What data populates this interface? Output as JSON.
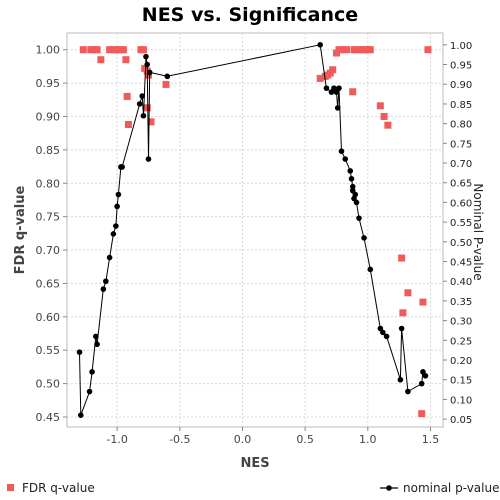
{
  "chart_data": {
    "type": "scatter",
    "title": "NES vs. Significance",
    "xlabel": "NES",
    "ylabel": "FDR q-value",
    "y2label": "Nominal P-value",
    "xlim": [
      -1.4,
      1.6
    ],
    "ylim": [
      0.435,
      1.025
    ],
    "y2lim": [
      0.03,
      1.03
    ],
    "x_ticks": [
      "-1.0",
      "-0.5",
      "0.0",
      "0.5",
      "1.0",
      "1.5"
    ],
    "x_tick_values": [
      -1.0,
      -0.5,
      0.0,
      0.5,
      1.0,
      1.5
    ],
    "y_ticks": [
      "0.45",
      "0.50",
      "0.55",
      "0.60",
      "0.65",
      "0.70",
      "0.75",
      "0.80",
      "0.85",
      "0.90",
      "0.95",
      "1.00"
    ],
    "y_tick_values": [
      0.45,
      0.5,
      0.55,
      0.6,
      0.65,
      0.7,
      0.75,
      0.8,
      0.85,
      0.9,
      0.95,
      1.0
    ],
    "y2_ticks": [
      "0.05",
      "0.10",
      "0.15",
      "0.20",
      "0.25",
      "0.30",
      "0.35",
      "0.40",
      "0.45",
      "0.50",
      "0.55",
      "0.60",
      "0.65",
      "0.70",
      "0.75",
      "0.80",
      "0.85",
      "0.90",
      "0.95",
      "1.00"
    ],
    "y2_tick_values": [
      0.05,
      0.1,
      0.15,
      0.2,
      0.25,
      0.3,
      0.35,
      0.4,
      0.45,
      0.5,
      0.55,
      0.6,
      0.65,
      0.7,
      0.75,
      0.8,
      0.85,
      0.9,
      0.95,
      1.0
    ],
    "grid": true,
    "legend_position": "bottom",
    "series": [
      {
        "name": "FDR q-value",
        "axis": "left",
        "style": "square-markers",
        "color": "#f05a5a",
        "points": [
          [
            -1.27,
            1.0
          ],
          [
            -1.21,
            1.0
          ],
          [
            -1.18,
            1.0
          ],
          [
            -1.16,
            1.0
          ],
          [
            -1.13,
            0.985
          ],
          [
            -1.06,
            1.0
          ],
          [
            -1.03,
            1.0
          ],
          [
            -1.0,
            1.0
          ],
          [
            -0.97,
            1.0
          ],
          [
            -0.95,
            1.0
          ],
          [
            -0.93,
            0.985
          ],
          [
            -0.92,
            0.93
          ],
          [
            -0.91,
            0.888
          ],
          [
            -0.81,
            1.0
          ],
          [
            -0.79,
            1.0
          ],
          [
            -0.78,
            0.972
          ],
          [
            -0.76,
            0.968
          ],
          [
            -0.75,
            0.962
          ],
          [
            -0.76,
            0.913
          ],
          [
            -0.73,
            0.892
          ],
          [
            -0.61,
            0.948
          ],
          [
            0.62,
            0.957
          ],
          [
            0.66,
            0.96
          ],
          [
            0.68,
            0.962
          ],
          [
            0.7,
            0.965
          ],
          [
            0.72,
            0.97
          ],
          [
            0.75,
            0.995
          ],
          [
            0.77,
            1.0
          ],
          [
            0.8,
            1.0
          ],
          [
            0.83,
            1.0
          ],
          [
            0.88,
            0.937
          ],
          [
            0.89,
            1.0
          ],
          [
            0.92,
            1.0
          ],
          [
            0.95,
            1.0
          ],
          [
            0.97,
            1.0
          ],
          [
            1.0,
            1.0
          ],
          [
            1.02,
            1.0
          ],
          [
            1.1,
            0.916
          ],
          [
            1.13,
            0.9
          ],
          [
            1.16,
            0.887
          ],
          [
            1.27,
            0.688
          ],
          [
            1.28,
            0.606
          ],
          [
            1.32,
            0.636
          ],
          [
            1.44,
            0.622
          ],
          [
            1.43,
            0.455
          ],
          [
            1.48,
            1.0
          ]
        ]
      },
      {
        "name": "nominal p-value",
        "axis": "right",
        "style": "line-with-dots",
        "color": "#000000",
        "points": [
          [
            -1.3,
            0.22
          ],
          [
            -1.29,
            0.06
          ],
          [
            -1.22,
            0.12
          ],
          [
            -1.2,
            0.17
          ],
          [
            -1.17,
            0.26
          ],
          [
            -1.16,
            0.24
          ],
          [
            -1.11,
            0.38
          ],
          [
            -1.09,
            0.4
          ],
          [
            -1.06,
            0.46
          ],
          [
            -1.03,
            0.52
          ],
          [
            -1.01,
            0.54
          ],
          [
            -1.0,
            0.59
          ],
          [
            -0.99,
            0.62
          ],
          [
            -0.97,
            0.69
          ],
          [
            -0.96,
            0.69
          ],
          [
            -0.82,
            0.85
          ],
          [
            -0.8,
            0.87
          ],
          [
            -0.79,
            0.82
          ],
          [
            -0.77,
            0.97
          ],
          [
            -0.76,
            0.95
          ],
          [
            -0.75,
            0.71
          ],
          [
            -0.74,
            0.93
          ],
          [
            -0.6,
            0.92
          ],
          [
            0.62,
            1.0
          ],
          [
            0.67,
            0.89
          ],
          [
            0.71,
            0.88
          ],
          [
            0.73,
            0.89
          ],
          [
            0.75,
            0.88
          ],
          [
            0.76,
            0.84
          ],
          [
            0.77,
            0.89
          ],
          [
            0.79,
            0.73
          ],
          [
            0.82,
            0.71
          ],
          [
            0.86,
            0.68
          ],
          [
            0.87,
            0.66
          ],
          [
            0.88,
            0.64
          ],
          [
            0.88,
            0.63
          ],
          [
            0.89,
            0.61
          ],
          [
            0.9,
            0.62
          ],
          [
            0.91,
            0.6
          ],
          [
            0.93,
            0.56
          ],
          [
            0.97,
            0.51
          ],
          [
            1.02,
            0.43
          ],
          [
            1.1,
            0.28
          ],
          [
            1.12,
            0.27
          ],
          [
            1.15,
            0.26
          ],
          [
            1.26,
            0.15
          ],
          [
            1.27,
            0.28
          ],
          [
            1.32,
            0.12
          ],
          [
            1.43,
            0.14
          ],
          [
            1.44,
            0.17
          ],
          [
            1.46,
            0.16
          ]
        ]
      }
    ]
  }
}
